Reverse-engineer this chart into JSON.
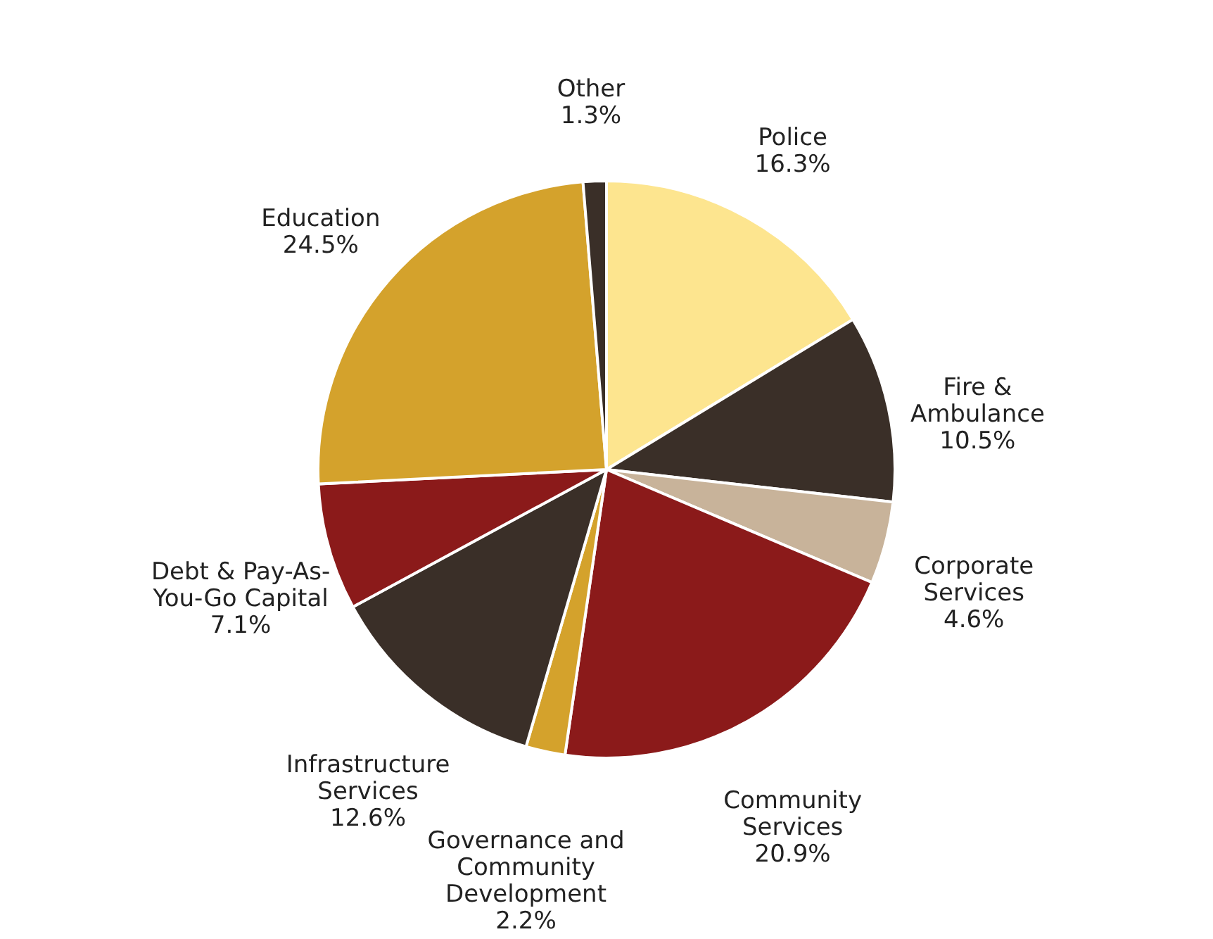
{
  "chart_data": {
    "type": "pie",
    "categories": [
      "Police",
      "Fire &\nAmbulance",
      "Corporate\nServices",
      "Community\nServices",
      "Governance and\nCommunity\nDevelopment",
      "Infrastructure\nServices",
      "Debt & Pay-As-\nYou-Go Capital",
      "Education",
      "Other"
    ],
    "values": [
      16.3,
      10.5,
      4.6,
      20.9,
      2.2,
      12.6,
      7.1,
      24.5,
      1.3
    ],
    "value_labels": [
      "16.3%",
      "10.5%",
      "4.6%",
      "20.9%",
      "2.2%",
      "12.6%",
      "7.1%",
      "24.5%",
      "1.3%"
    ],
    "colors": [
      "#fde58f",
      "#3a2f28",
      "#c8b39a",
      "#8b1a1a",
      "#d4a22c",
      "#3a2f28",
      "#8b1a1a",
      "#d4a22c",
      "#3a2f28"
    ],
    "legend": false
  }
}
